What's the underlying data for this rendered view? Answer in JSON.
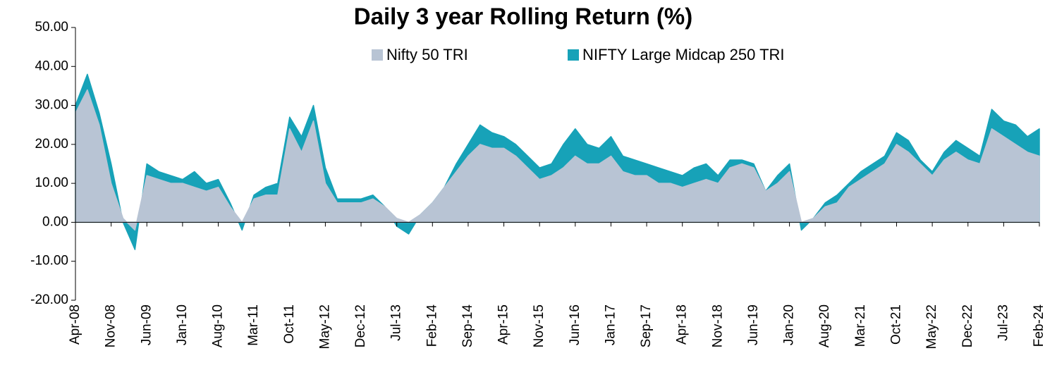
{
  "chart_data": {
    "type": "area",
    "title": "Daily 3 year Rolling Return (%)",
    "categories": [
      "Apr-08",
      null,
      null,
      "Nov-08",
      null,
      null,
      "Jun-09",
      null,
      null,
      "Jan-10",
      null,
      null,
      "Aug-10",
      null,
      null,
      "Mar-11",
      null,
      null,
      "Oct-11",
      null,
      null,
      "May-12",
      null,
      null,
      "Dec-12",
      null,
      null,
      "Jul-13",
      null,
      null,
      "Feb-14",
      null,
      null,
      "Sep-14",
      null,
      null,
      "Apr-15",
      null,
      null,
      "Nov-15",
      null,
      null,
      "Jun-16",
      null,
      null,
      "Jan-17",
      null,
      null,
      "Sep-17",
      null,
      null,
      "Apr-18",
      null,
      null,
      "Nov-18",
      null,
      null,
      "Jun-19",
      null,
      null,
      "Jan-20",
      null,
      null,
      "Aug-20",
      null,
      null,
      "Mar-21",
      null,
      null,
      "Oct-21",
      null,
      null,
      "May-22",
      null,
      null,
      "Dec-22",
      null,
      null,
      "Jul-23",
      null,
      null,
      "Feb-24"
    ],
    "series": [
      {
        "name": "NIFTY Large Midcap 250 TRI",
        "color": "#17a2b8",
        "values": [
          30,
          38,
          28,
          15,
          0,
          -7,
          15,
          13,
          12,
          11,
          13,
          10,
          11,
          5,
          -2,
          7,
          9,
          10,
          27,
          22,
          30,
          14,
          6,
          6,
          6,
          7,
          4,
          -1,
          -3,
          2,
          5,
          9,
          15,
          20,
          25,
          23,
          22,
          20,
          17,
          14,
          15,
          20,
          24,
          20,
          19,
          22,
          17,
          16,
          15,
          14,
          13,
          12,
          14,
          15,
          12,
          16,
          16,
          15,
          8,
          12,
          15,
          -2,
          1,
          5,
          7,
          10,
          13,
          15,
          17,
          23,
          21,
          16,
          13,
          18,
          21,
          19,
          17,
          29,
          26,
          25,
          22,
          24
        ]
      },
      {
        "name": "Nifty 50 TRI",
        "color": "#b8c4d4",
        "values": [
          28,
          34,
          25,
          10,
          1,
          -2,
          12,
          11,
          10,
          10,
          9,
          8,
          9,
          4,
          0,
          6,
          7,
          7,
          24,
          18,
          26,
          10,
          5,
          5,
          5,
          6,
          4,
          1,
          0,
          2,
          5,
          9,
          13,
          17,
          20,
          19,
          19,
          17,
          14,
          11,
          12,
          14,
          17,
          15,
          15,
          17,
          13,
          12,
          12,
          10,
          10,
          9,
          10,
          11,
          10,
          14,
          15,
          14,
          8,
          10,
          13,
          0,
          1,
          4,
          5,
          9,
          11,
          13,
          15,
          20,
          18,
          15,
          12,
          16,
          18,
          16,
          15,
          24,
          22,
          20,
          18,
          17
        ]
      }
    ],
    "ylim": [
      -20,
      50
    ],
    "yticks": [
      {
        "value": -20,
        "label": "-20.00"
      },
      {
        "value": -10,
        "label": "-10.00"
      },
      {
        "value": 0,
        "label": "0.00"
      },
      {
        "value": 10,
        "label": "10.00"
      },
      {
        "value": 20,
        "label": "20.00"
      },
      {
        "value": 30,
        "label": "30.00"
      },
      {
        "value": 40,
        "label": "40.00"
      },
      {
        "value": 50,
        "label": "50.00"
      }
    ],
    "grid": false
  }
}
